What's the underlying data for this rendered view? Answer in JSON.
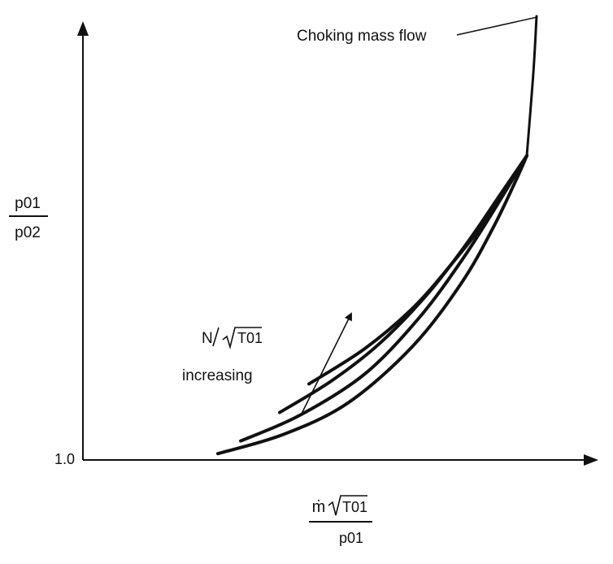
{
  "chart_data": {
    "type": "line",
    "title": "",
    "xlabel": {
      "numerator_symbol": "ṁ",
      "numerator_radicand": "T01",
      "denominator": "p01"
    },
    "ylabel": {
      "numerator": "p01",
      "denominator": "p02"
    },
    "y_tick_labels": [
      "1.0"
    ],
    "grid": false,
    "annotations": {
      "choking_label": "Choking mass flow",
      "speed_numerator": "N",
      "speed_radicand": "T01",
      "speed_word": "increasing"
    },
    "curves": [
      {
        "points": [
          [
            0.0,
            0.02
          ],
          [
            0.2,
            0.08
          ],
          [
            0.4,
            0.18
          ],
          [
            0.6,
            0.36
          ],
          [
            0.75,
            0.56
          ],
          [
            0.85,
            0.74
          ],
          [
            0.92,
            0.89
          ],
          [
            0.95,
            0.96
          ]
        ]
      },
      {
        "points": [
          [
            0.07,
            0.06
          ],
          [
            0.25,
            0.14
          ],
          [
            0.45,
            0.27
          ],
          [
            0.62,
            0.45
          ],
          [
            0.75,
            0.63
          ],
          [
            0.85,
            0.79
          ],
          [
            0.95,
            0.96
          ]
        ]
      },
      {
        "points": [
          [
            0.19,
            0.15
          ],
          [
            0.35,
            0.25
          ],
          [
            0.5,
            0.37
          ],
          [
            0.65,
            0.53
          ],
          [
            0.77,
            0.69
          ],
          [
            0.87,
            0.84
          ],
          [
            0.95,
            0.96
          ]
        ]
      },
      {
        "points": [
          [
            0.28,
            0.24
          ],
          [
            0.45,
            0.35
          ],
          [
            0.6,
            0.48
          ],
          [
            0.72,
            0.62
          ],
          [
            0.82,
            0.75
          ],
          [
            0.89,
            0.86
          ],
          [
            0.95,
            0.96
          ]
        ]
      }
    ],
    "choke_line": {
      "points": [
        [
          0.95,
          0.96
        ],
        [
          0.97,
          1.22
        ],
        [
          0.98,
          1.4
        ]
      ]
    }
  }
}
